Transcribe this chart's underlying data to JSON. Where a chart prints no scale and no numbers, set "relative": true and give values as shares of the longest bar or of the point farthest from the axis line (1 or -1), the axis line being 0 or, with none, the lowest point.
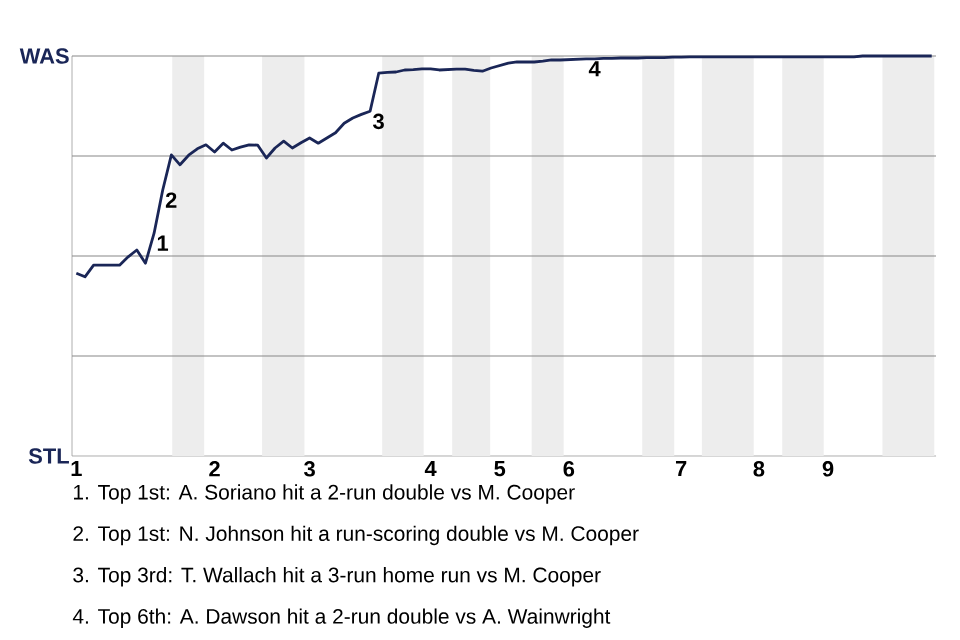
{
  "chart_data": {
    "type": "line",
    "relative": true,
    "categories": [
      "1",
      null,
      null,
      null,
      null,
      null,
      null,
      null,
      null,
      null,
      null,
      null,
      null,
      null,
      null,
      null,
      "2",
      null,
      null,
      null,
      null,
      null,
      null,
      null,
      null,
      null,
      null,
      "3",
      null,
      null,
      null,
      null,
      null,
      null,
      null,
      null,
      null,
      null,
      null,
      null,
      null,
      "4",
      null,
      null,
      null,
      null,
      null,
      null,
      null,
      "5",
      null,
      null,
      null,
      null,
      null,
      null,
      null,
      "6",
      null,
      null,
      null,
      null,
      null,
      null,
      null,
      null,
      null,
      null,
      null,
      null,
      "7",
      null,
      null,
      null,
      null,
      null,
      null,
      null,
      null,
      "8",
      null,
      null,
      null,
      null,
      null,
      null,
      null,
      "9",
      null,
      null,
      null,
      null,
      null,
      null,
      null,
      null,
      null,
      null,
      null,
      null
    ],
    "series": [
      {
        "color": "#1a2657",
        "values": [
          0.457,
          0.448,
          0.477,
          0.477,
          0.477,
          0.477,
          0.498,
          0.515,
          0.482,
          0.557,
          0.665,
          0.753,
          0.728,
          0.752,
          0.768,
          0.778,
          0.76,
          0.782,
          0.765,
          0.772,
          0.778,
          0.777,
          0.745,
          0.77,
          0.787,
          0.77,
          0.783,
          0.795,
          0.782,
          0.795,
          0.808,
          0.832,
          0.845,
          0.854,
          0.862,
          0.957,
          0.959,
          0.96,
          0.965,
          0.966,
          0.968,
          0.968,
          0.965,
          0.966,
          0.967,
          0.967,
          0.964,
          0.962,
          0.97,
          0.976,
          0.982,
          0.985,
          0.985,
          0.985,
          0.987,
          0.99,
          0.99,
          0.991,
          0.992,
          0.993,
          0.993,
          0.994,
          0.994,
          0.995,
          0.995,
          0.995,
          0.996,
          0.996,
          0.996,
          0.997,
          0.997,
          0.998,
          0.998,
          0.998,
          0.998,
          0.998,
          0.998,
          0.998,
          0.998,
          0.998,
          0.998,
          0.998,
          0.998,
          0.998,
          0.998,
          0.998,
          0.998,
          0.998,
          0.998,
          0.998,
          0.998,
          1,
          1,
          1,
          1,
          1,
          1,
          1,
          1,
          1
        ]
      }
    ],
    "marker": "none",
    "line_style": "solid",
    "ref_lines": [
      {
        "axis": "y",
        "value": 0.25,
        "color": "#888888"
      },
      {
        "axis": "y",
        "value": 0.5,
        "color": "#888888"
      },
      {
        "axis": "y",
        "value": 0.75,
        "color": "#888888"
      },
      {
        "axis": "y",
        "value": 1,
        "color": "#888888"
      }
    ],
    "annotations": [
      "WAS",
      "STL",
      {
        "text": "1",
        "y": 0.557
      },
      {
        "text": "2",
        "y": 0.665
      },
      {
        "text": "3",
        "y": 0.862
      },
      {
        "text": "4",
        "y": 0.993
      },
      "1. Top 1st: A. Soriano hit a 2-run double vs M. Cooper",
      "2. Top 1st: N. Johnson hit a run-scoring double vs M. Cooper",
      "3. Top 3rd: T. Wallach hit a 3-run home run vs M. Cooper",
      "4. Top 6th: A. Dawson hit a 2-run double vs A. Wainwright"
    ]
  }
}
